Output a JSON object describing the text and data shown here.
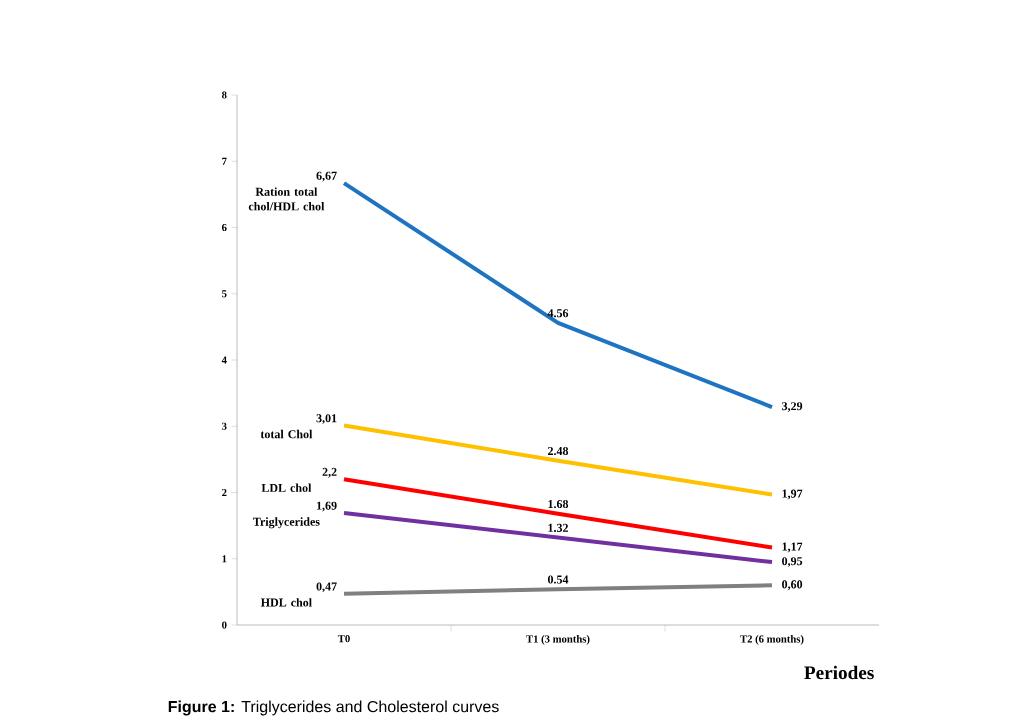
{
  "chart_data": {
    "type": "line",
    "xlabel": "Periodes",
    "categories": [
      "T0",
      "T1 (3 months)",
      "T2 (6 months)"
    ],
    "ylim": [
      0,
      8
    ],
    "yticks": [
      0,
      1,
      2,
      3,
      4,
      5,
      6,
      7,
      8
    ],
    "grid": false,
    "legend": false,
    "marker": "none",
    "line_style": "solid",
    "series": [
      {
        "name": "Ration total chol/HDL chol",
        "color": "#1f74c1",
        "values": [
          6.67,
          4.56,
          3.29
        ],
        "value_labels": [
          "6,67",
          "4.56",
          "3,29"
        ]
      },
      {
        "name": "total Chol",
        "color": "#ffc000",
        "values": [
          3.01,
          2.48,
          1.97
        ],
        "value_labels": [
          "3,01",
          "2.48",
          "1,97"
        ]
      },
      {
        "name": "LDL chol",
        "color": "#ff0000",
        "values": [
          2.2,
          1.68,
          1.17
        ],
        "value_labels": [
          "2,2",
          "1.68",
          "1,17"
        ]
      },
      {
        "name": "Triglycerides",
        "color": "#7030a0",
        "values": [
          1.69,
          1.32,
          0.95
        ],
        "value_labels": [
          "1,69",
          "1.32",
          "0,95"
        ]
      },
      {
        "name": "HDL chol",
        "color": "#808080",
        "values": [
          0.47,
          0.54,
          0.6
        ],
        "value_labels": [
          "0,47",
          "0.54",
          "0,60"
        ]
      }
    ],
    "annotations": [
      "**Figure 1:** Triglycerides and Cholesterol curves"
    ]
  }
}
